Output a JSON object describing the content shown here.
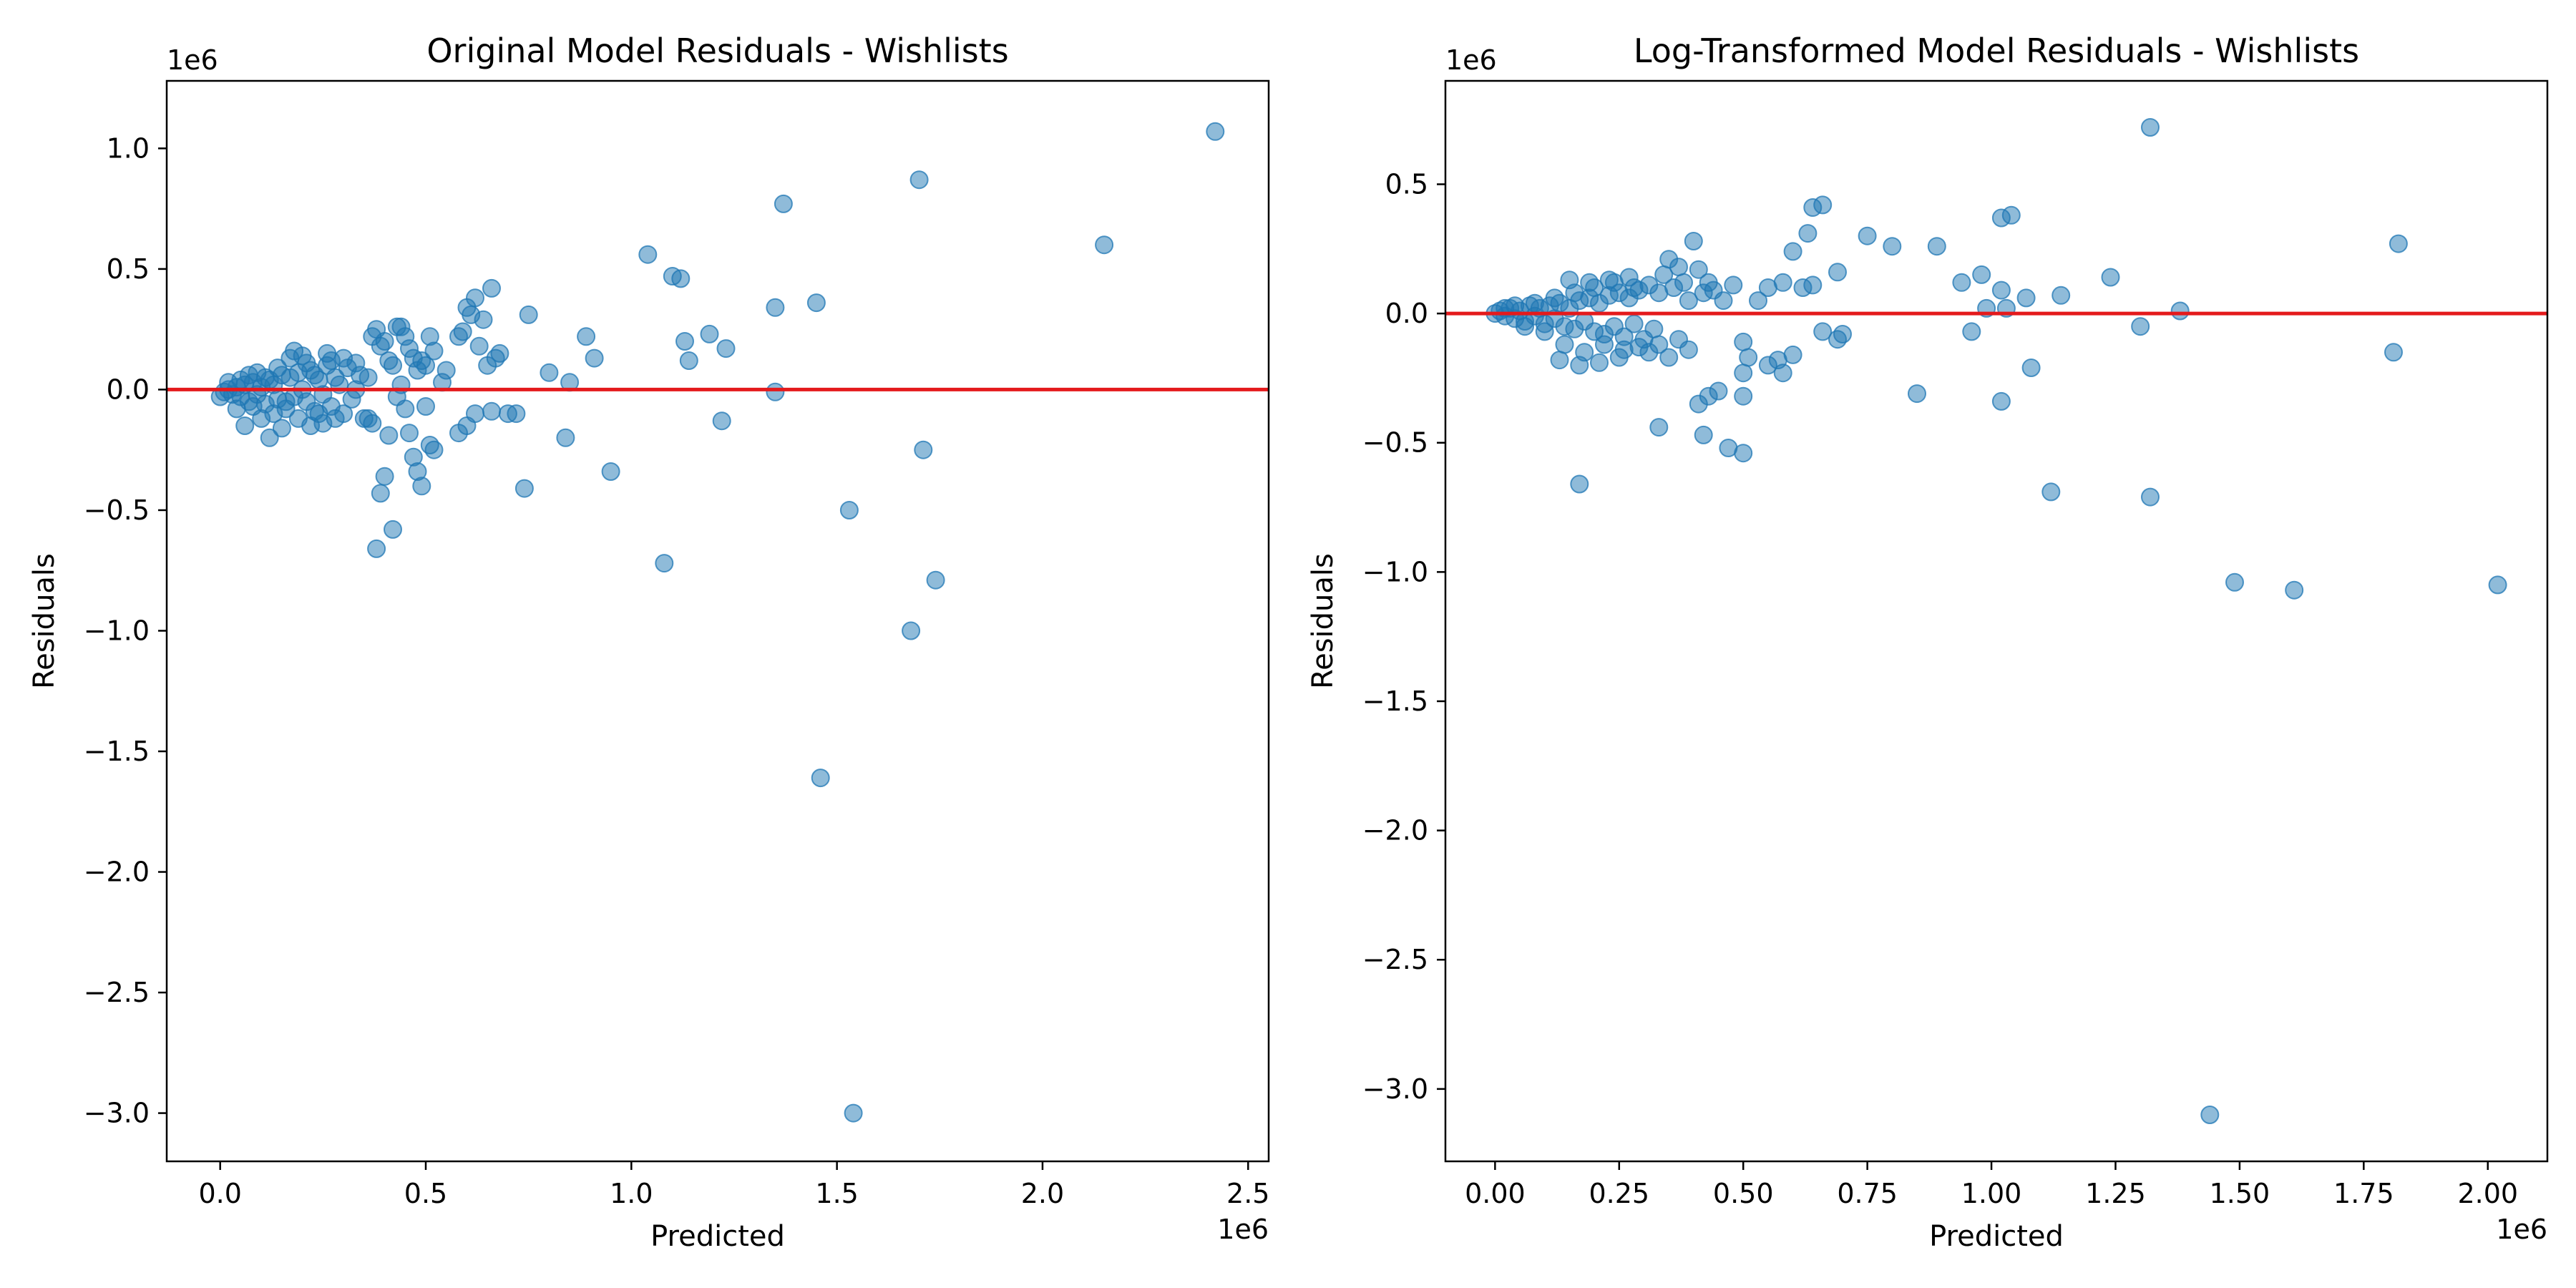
{
  "chart_data": [
    {
      "type": "scatter",
      "title": "Original Model Residuals - Wishlists",
      "xlabel": "Predicted",
      "ylabel": "Residuals",
      "x_offset_label": "1e6",
      "y_offset_label": "1e6",
      "xlim": [
        -0.13,
        2.55
      ],
      "ylim": [
        -3.2,
        1.28
      ],
      "xticks": [
        0.0,
        0.5,
        1.0,
        1.5,
        2.0,
        2.5
      ],
      "xtick_labels": [
        "0.0",
        "0.5",
        "1.0",
        "1.5",
        "2.0",
        "2.5"
      ],
      "yticks": [
        1.0,
        0.5,
        0.0,
        -0.5,
        -1.0,
        -1.5,
        -2.0,
        -2.5,
        -3.0
      ],
      "ytick_labels": [
        "1.0",
        "0.5",
        "0.0",
        "−0.5",
        "−1.0",
        "−1.5",
        "−2.0",
        "−2.5",
        "−3.0"
      ],
      "reference_line": 0.0,
      "point_color": "#1f77b4",
      "line_color": "#e41a1c",
      "grid": false,
      "points": [
        [
          0.0,
          -0.03
        ],
        [
          0.01,
          -0.01
        ],
        [
          0.02,
          0.0
        ],
        [
          0.03,
          -0.02
        ],
        [
          0.04,
          0.01
        ],
        [
          0.05,
          -0.03
        ],
        [
          0.06,
          0.02
        ],
        [
          0.07,
          -0.05
        ],
        [
          0.08,
          0.03
        ],
        [
          0.09,
          -0.02
        ],
        [
          0.1,
          0.01
        ],
        [
          0.11,
          -0.06
        ],
        [
          0.12,
          0.04
        ],
        [
          0.13,
          0.02
        ],
        [
          0.14,
          -0.04
        ],
        [
          0.15,
          0.06
        ],
        [
          0.16,
          -0.08
        ],
        [
          0.17,
          0.05
        ],
        [
          0.18,
          -0.03
        ],
        [
          0.19,
          0.07
        ],
        [
          0.2,
          0.0
        ],
        [
          0.21,
          -0.05
        ],
        [
          0.22,
          0.08
        ],
        [
          0.23,
          -0.09
        ],
        [
          0.24,
          0.04
        ],
        [
          0.25,
          -0.02
        ],
        [
          0.26,
          0.1
        ],
        [
          0.27,
          -0.07
        ],
        [
          0.28,
          0.05
        ],
        [
          0.29,
          0.02
        ],
        [
          0.3,
          -0.1
        ],
        [
          0.31,
          0.09
        ],
        [
          0.32,
          -0.04
        ],
        [
          0.33,
          0.11
        ],
        [
          0.34,
          0.06
        ],
        [
          0.35,
          -0.12
        ],
        [
          0.02,
          0.03
        ],
        [
          0.05,
          0.04
        ],
        [
          0.08,
          -0.07
        ],
        [
          0.11,
          0.05
        ],
        [
          0.13,
          -0.1
        ],
        [
          0.15,
          -0.16
        ],
        [
          0.17,
          0.13
        ],
        [
          0.19,
          -0.12
        ],
        [
          0.21,
          0.11
        ],
        [
          0.23,
          0.06
        ],
        [
          0.25,
          -0.14
        ],
        [
          0.27,
          0.12
        ],
        [
          0.12,
          -0.2
        ],
        [
          0.18,
          0.16
        ],
        [
          0.22,
          -0.15
        ],
        [
          0.26,
          0.15
        ],
        [
          0.28,
          -0.12
        ],
        [
          0.3,
          0.13
        ],
        [
          0.06,
          -0.15
        ],
        [
          0.09,
          0.07
        ],
        [
          0.04,
          -0.08
        ],
        [
          0.07,
          0.06
        ],
        [
          0.1,
          -0.12
        ],
        [
          0.14,
          0.09
        ],
        [
          0.16,
          -0.05
        ],
        [
          0.2,
          0.14
        ],
        [
          0.24,
          -0.1
        ],
        [
          0.33,
          0.0
        ],
        [
          0.36,
          0.05
        ],
        [
          0.37,
          0.22
        ],
        [
          0.38,
          0.25
        ],
        [
          0.39,
          0.18
        ],
        [
          0.4,
          0.2
        ],
        [
          0.41,
          0.12
        ],
        [
          0.42,
          0.1
        ],
        [
          0.43,
          0.26
        ],
        [
          0.44,
          0.26
        ],
        [
          0.45,
          0.22
        ],
        [
          0.46,
          0.17
        ],
        [
          0.47,
          0.13
        ],
        [
          0.48,
          0.08
        ],
        [
          0.49,
          0.12
        ],
        [
          0.5,
          0.1
        ],
        [
          0.51,
          0.22
        ],
        [
          0.52,
          0.16
        ],
        [
          0.55,
          0.08
        ],
        [
          0.58,
          0.22
        ],
        [
          0.59,
          0.24
        ],
        [
          0.6,
          0.34
        ],
        [
          0.61,
          0.31
        ],
        [
          0.62,
          0.38
        ],
        [
          0.63,
          0.18
        ],
        [
          0.64,
          0.29
        ],
        [
          0.66,
          0.42
        ],
        [
          0.67,
          0.13
        ],
        [
          0.68,
          0.15
        ],
        [
          0.65,
          0.1
        ],
        [
          0.54,
          0.03
        ],
        [
          0.36,
          -0.12
        ],
        [
          0.37,
          -0.14
        ],
        [
          0.38,
          -0.66
        ],
        [
          0.39,
          -0.43
        ],
        [
          0.4,
          -0.36
        ],
        [
          0.41,
          -0.19
        ],
        [
          0.42,
          -0.58
        ],
        [
          0.43,
          -0.03
        ],
        [
          0.44,
          0.02
        ],
        [
          0.45,
          -0.08
        ],
        [
          0.46,
          -0.18
        ],
        [
          0.47,
          -0.28
        ],
        [
          0.48,
          -0.34
        ],
        [
          0.49,
          -0.4
        ],
        [
          0.5,
          -0.07
        ],
        [
          0.51,
          -0.23
        ],
        [
          0.52,
          -0.25
        ],
        [
          0.58,
          -0.18
        ],
        [
          0.6,
          -0.15
        ],
        [
          0.62,
          -0.1
        ],
        [
          0.66,
          -0.09
        ],
        [
          0.7,
          -0.1
        ],
        [
          0.72,
          -0.1
        ],
        [
          0.74,
          -0.41
        ],
        [
          0.75,
          0.31
        ],
        [
          0.8,
          0.07
        ],
        [
          0.84,
          -0.2
        ],
        [
          0.85,
          0.03
        ],
        [
          0.89,
          0.22
        ],
        [
          0.91,
          0.13
        ],
        [
          0.95,
          -0.34
        ],
        [
          1.04,
          0.56
        ],
        [
          1.08,
          -0.72
        ],
        [
          1.1,
          0.47
        ],
        [
          1.12,
          0.46
        ],
        [
          1.13,
          0.2
        ],
        [
          1.14,
          0.12
        ],
        [
          1.19,
          0.23
        ],
        [
          1.22,
          -0.13
        ],
        [
          1.23,
          0.17
        ],
        [
          1.35,
          0.34
        ],
        [
          1.35,
          -0.01
        ],
        [
          1.37,
          0.77
        ],
        [
          1.45,
          0.36
        ],
        [
          1.46,
          -1.61
        ],
        [
          1.53,
          -0.5
        ],
        [
          1.54,
          -3.0
        ],
        [
          1.68,
          -1.0
        ],
        [
          1.7,
          0.87
        ],
        [
          1.71,
          -0.25
        ],
        [
          1.74,
          -0.79
        ],
        [
          2.15,
          0.6
        ],
        [
          2.42,
          1.07
        ]
      ]
    },
    {
      "type": "scatter",
      "title": "Log-Transformed Model Residuals - Wishlists",
      "xlabel": "Predicted",
      "ylabel": "Residuals",
      "x_offset_label": "1e6",
      "y_offset_label": "1e6",
      "xlim": [
        -0.1,
        2.12
      ],
      "ylim": [
        -3.28,
        0.9
      ],
      "xticks": [
        0.0,
        0.25,
        0.5,
        0.75,
        1.0,
        1.25,
        1.5,
        1.75,
        2.0
      ],
      "xtick_labels": [
        "0.00",
        "0.25",
        "0.50",
        "0.75",
        "1.00",
        "1.25",
        "1.50",
        "1.75",
        "2.00"
      ],
      "yticks": [
        0.5,
        0.0,
        -0.5,
        -1.0,
        -1.5,
        -2.0,
        -2.5,
        -3.0
      ],
      "ytick_labels": [
        "0.5",
        "0.0",
        "−0.5",
        "−1.0",
        "−1.5",
        "−2.0",
        "−2.5",
        "−3.0"
      ],
      "reference_line": 0.0,
      "point_color": "#1f77b4",
      "line_color": "#e41a1c",
      "grid": false,
      "points": [
        [
          0.0,
          0.0
        ],
        [
          0.01,
          0.01
        ],
        [
          0.02,
          -0.01
        ],
        [
          0.03,
          0.02
        ],
        [
          0.04,
          -0.02
        ],
        [
          0.05,
          0.01
        ],
        [
          0.06,
          -0.03
        ],
        [
          0.07,
          0.03
        ],
        [
          0.08,
          -0.01
        ],
        [
          0.09,
          0.02
        ],
        [
          0.1,
          -0.04
        ],
        [
          0.11,
          0.03
        ],
        [
          0.12,
          -0.02
        ],
        [
          0.13,
          0.04
        ],
        [
          0.14,
          -0.05
        ],
        [
          0.15,
          0.02
        ],
        [
          0.16,
          -0.06
        ],
        [
          0.17,
          0.05
        ],
        [
          0.18,
          -0.03
        ],
        [
          0.19,
          0.06
        ],
        [
          0.2,
          -0.07
        ],
        [
          0.21,
          0.04
        ],
        [
          0.22,
          -0.08
        ],
        [
          0.23,
          0.07
        ],
        [
          0.24,
          -0.05
        ],
        [
          0.25,
          0.08
        ],
        [
          0.26,
          -0.09
        ],
        [
          0.27,
          0.06
        ],
        [
          0.28,
          -0.04
        ],
        [
          0.29,
          0.09
        ],
        [
          0.3,
          -0.1
        ],
        [
          0.02,
          0.02
        ],
        [
          0.04,
          0.03
        ],
        [
          0.06,
          -0.05
        ],
        [
          0.08,
          0.04
        ],
        [
          0.1,
          -0.07
        ],
        [
          0.12,
          0.06
        ],
        [
          0.14,
          -0.12
        ],
        [
          0.16,
          0.08
        ],
        [
          0.18,
          -0.15
        ],
        [
          0.2,
          0.1
        ],
        [
          0.22,
          -0.12
        ],
        [
          0.24,
          0.12
        ],
        [
          0.26,
          -0.14
        ],
        [
          0.28,
          0.1
        ],
        [
          0.13,
          -0.18
        ],
        [
          0.15,
          0.13
        ],
        [
          0.17,
          -0.2
        ],
        [
          0.19,
          0.12
        ],
        [
          0.21,
          -0.19
        ],
        [
          0.23,
          0.13
        ],
        [
          0.25,
          -0.17
        ],
        [
          0.27,
          0.14
        ],
        [
          0.29,
          -0.13
        ],
        [
          0.31,
          0.11
        ],
        [
          0.32,
          -0.06
        ],
        [
          0.33,
          0.08
        ],
        [
          0.34,
          0.15
        ],
        [
          0.35,
          0.21
        ],
        [
          0.36,
          0.1
        ],
        [
          0.37,
          0.18
        ],
        [
          0.38,
          0.12
        ],
        [
          0.39,
          0.05
        ],
        [
          0.4,
          0.28
        ],
        [
          0.41,
          0.17
        ],
        [
          0.42,
          0.08
        ],
        [
          0.43,
          0.12
        ],
        [
          0.44,
          0.09
        ],
        [
          0.46,
          0.05
        ],
        [
          0.48,
          0.11
        ],
        [
          0.31,
          -0.15
        ],
        [
          0.33,
          -0.12
        ],
        [
          0.35,
          -0.17
        ],
        [
          0.37,
          -0.1
        ],
        [
          0.39,
          -0.14
        ],
        [
          0.41,
          -0.35
        ],
        [
          0.43,
          -0.32
        ],
        [
          0.45,
          -0.3
        ],
        [
          0.47,
          -0.52
        ],
        [
          0.5,
          -0.54
        ],
        [
          0.5,
          -0.32
        ],
        [
          0.5,
          -0.23
        ],
        [
          0.5,
          -0.11
        ],
        [
          0.51,
          -0.17
        ],
        [
          0.33,
          -0.44
        ],
        [
          0.42,
          -0.47
        ],
        [
          0.17,
          -0.66
        ],
        [
          0.53,
          0.05
        ],
        [
          0.55,
          0.1
        ],
        [
          0.58,
          0.12
        ],
        [
          0.6,
          0.24
        ],
        [
          0.62,
          0.1
        ],
        [
          0.63,
          0.31
        ],
        [
          0.64,
          0.41
        ],
        [
          0.66,
          0.42
        ],
        [
          0.64,
          0.11
        ],
        [
          0.69,
          0.16
        ],
        [
          0.55,
          -0.2
        ],
        [
          0.57,
          -0.18
        ],
        [
          0.58,
          -0.23
        ],
        [
          0.6,
          -0.16
        ],
        [
          0.66,
          -0.07
        ],
        [
          0.69,
          -0.1
        ],
        [
          0.7,
          -0.08
        ],
        [
          0.75,
          0.3
        ],
        [
          0.8,
          0.26
        ],
        [
          0.85,
          -0.31
        ],
        [
          0.89,
          0.26
        ],
        [
          0.94,
          0.12
        ],
        [
          0.96,
          -0.07
        ],
        [
          0.98,
          0.15
        ],
        [
          0.99,
          0.02
        ],
        [
          1.02,
          0.37
        ],
        [
          1.04,
          0.38
        ],
        [
          1.02,
          0.09
        ],
        [
          1.03,
          0.02
        ],
        [
          1.07,
          0.06
        ],
        [
          1.08,
          -0.21
        ],
        [
          1.02,
          -0.34
        ],
        [
          1.12,
          -0.69
        ],
        [
          1.14,
          0.07
        ],
        [
          1.24,
          0.14
        ],
        [
          1.3,
          -0.05
        ],
        [
          1.32,
          0.72
        ],
        [
          1.32,
          -0.71
        ],
        [
          1.38,
          0.01
        ],
        [
          1.44,
          -3.1
        ],
        [
          1.49,
          -1.04
        ],
        [
          1.61,
          -1.07
        ],
        [
          1.81,
          -0.15
        ],
        [
          1.82,
          0.27
        ],
        [
          2.02,
          -1.05
        ]
      ]
    }
  ]
}
